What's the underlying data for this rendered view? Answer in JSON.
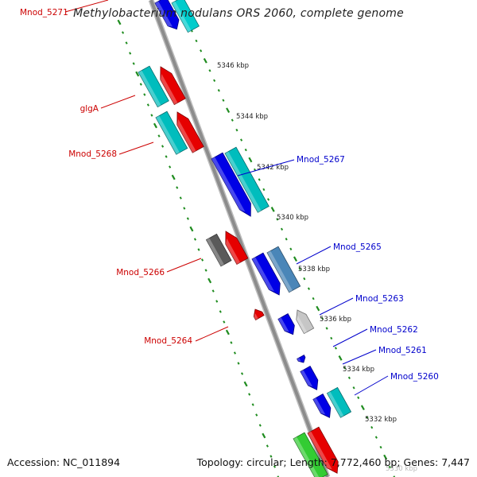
{
  "title": "Methylobacterium nodulans ORS 2060, complete genome",
  "footer": {
    "accession": "Accession: NC_011894",
    "summary": "Topology: circular; Length: 7,772,460 bp; Genes: 7,447"
  },
  "colors": {
    "backbone": "#8c8c8c",
    "tick": "#1f8c1f",
    "reverse_label": "#cc0000",
    "forward_label": "#0000cc"
  },
  "ticks": [
    {
      "label": "5346 kbp"
    },
    {
      "label": "5344 kbp"
    },
    {
      "label": "5342 kbp"
    },
    {
      "label": "5340 kbp"
    },
    {
      "label": "5338 kbp"
    },
    {
      "label": "5336 kbp"
    },
    {
      "label": "5334 kbp"
    },
    {
      "label": "5332 kbp"
    },
    {
      "label": "5330 kbp"
    }
  ],
  "genes": [
    {
      "name": "Mnod_5271",
      "strand": "reverse",
      "labeled": true
    },
    {
      "name": "glgA",
      "strand": "reverse",
      "labeled": true
    },
    {
      "name": "Mnod_5268",
      "strand": "reverse",
      "labeled": true
    },
    {
      "name": "Mnod_5267",
      "strand": "forward",
      "labeled": true
    },
    {
      "name": "Mnod_5266",
      "strand": "reverse",
      "labeled": true
    },
    {
      "name": "Mnod_5265",
      "strand": "forward",
      "labeled": true
    },
    {
      "name": "Mnod_5264",
      "strand": "reverse",
      "labeled": true
    },
    {
      "name": "Mnod_5263",
      "strand": "forward",
      "labeled": true
    },
    {
      "name": "Mnod_5262",
      "strand": "forward",
      "labeled": true
    },
    {
      "name": "Mnod_5261",
      "strand": "forward",
      "labeled": true
    },
    {
      "name": "Mnod_5260",
      "strand": "forward",
      "labeled": true
    }
  ]
}
